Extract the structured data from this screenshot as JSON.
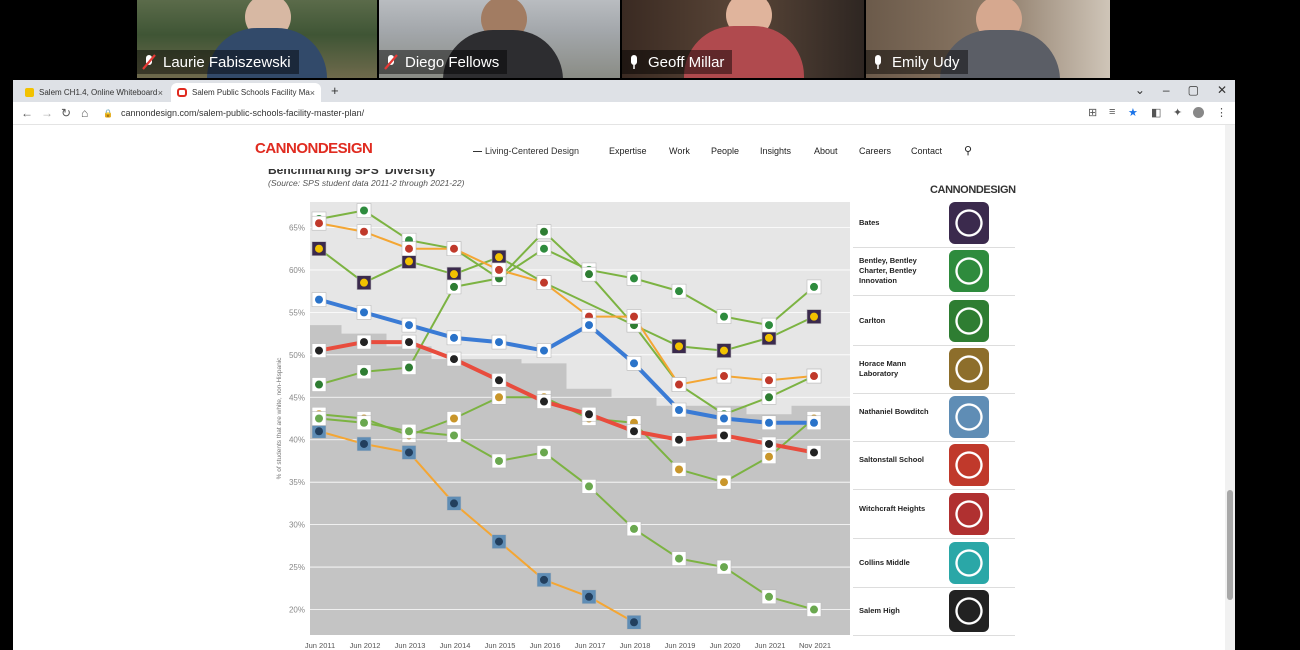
{
  "participants": [
    {
      "name": "Laurie Fabiszewski",
      "muted": true,
      "active": false
    },
    {
      "name": "Diego Fellows",
      "muted": true,
      "active": false
    },
    {
      "name": "Geoff Millar",
      "muted": false,
      "active": false
    },
    {
      "name": "Emily Udy",
      "muted": false,
      "active": true
    }
  ],
  "browser": {
    "tabs": [
      {
        "title": "Salem CH1.4, Online Whiteboard",
        "active": false
      },
      {
        "title": "Salem Public Schools Facility Ma",
        "active": true
      }
    ],
    "url": "cannondesign.com/salem-public-schools-facility-master-plan/",
    "new_tab_label": "+",
    "close_label": "×",
    "window_controls": [
      "⌄",
      "–",
      "▢",
      "✕"
    ]
  },
  "site": {
    "logo": "CANNONDESIGN",
    "tagline": "Living-Centered Design",
    "nav": [
      "Expertise",
      "Work",
      "People",
      "Insights",
      "About",
      "Careers",
      "Contact"
    ]
  },
  "chart_data": {
    "type": "line",
    "title": "Benchmarking SPS' Diversity",
    "source": "(Source: SPS student data 2011-2 through 2021-22)",
    "ylabel": "% of students that are white, non-Hispanic",
    "ylim": [
      17,
      68
    ],
    "yticks": [
      "20%",
      "25%",
      "30%",
      "35%",
      "40%",
      "45%",
      "50%",
      "55%",
      "60%",
      "65%"
    ],
    "categories": [
      "Jun 2011",
      "Jun 2012",
      "Jun 2013",
      "Jun 2014",
      "Jun 2015",
      "Jun 2016",
      "Jun 2017",
      "Jun 2018",
      "Jun 2019",
      "Jun 2020",
      "Jun 2021",
      "Nov 2021"
    ],
    "district_band": [
      53.5,
      52.5,
      51,
      49.5,
      49.5,
      49,
      46,
      45,
      44,
      44,
      43,
      44
    ],
    "series": [
      {
        "name": "Bates",
        "color": "#7cb342",
        "values": [
          62.5,
          58.5,
          61,
          59.5,
          61.5,
          58.5,
          null,
          53.5,
          51,
          50.5,
          52,
          54.5
        ]
      },
      {
        "name": "Bentley, Bentley Charter, Bentley Innovation",
        "color": "#7cb342",
        "values": [
          66,
          67,
          63.5,
          62.5,
          59,
          62.5,
          60,
          59,
          57.5,
          54.5,
          53.5,
          58
        ]
      },
      {
        "name": "Carlton",
        "color": "#7cb342",
        "values": [
          46.5,
          48,
          48.5,
          58,
          59,
          64.5,
          59.5,
          53.5,
          46.5,
          43,
          45,
          47.5
        ]
      },
      {
        "name": "Horace Mann Laboratory",
        "color": "#7cb342",
        "values": [
          43,
          42.5,
          40.5,
          42.5,
          45,
          45,
          42.5,
          42,
          36.5,
          35,
          38,
          42.5
        ]
      },
      {
        "name": "Nathaniel Bowditch",
        "color": "#f4a633",
        "values": [
          41,
          39.5,
          38.5,
          32.5,
          28,
          23.5,
          21.5,
          18.5,
          null,
          null,
          null,
          null
        ]
      },
      {
        "name": "Saltonstall School",
        "color": "#f4a633",
        "values": [
          65.5,
          64.5,
          62.5,
          62.5,
          60,
          58.5,
          54.5,
          54.5,
          46.5,
          47.5,
          47,
          47.5
        ]
      },
      {
        "name": "Witchcraft Heights",
        "color": "#7cb342",
        "values": [
          42.5,
          42,
          41,
          40.5,
          37.5,
          38.5,
          34.5,
          29.5,
          26,
          25,
          21.5,
          20
        ]
      },
      {
        "name": "Collins Middle",
        "color": "#3a7bd5",
        "values": [
          56.5,
          55,
          53.5,
          52,
          51.5,
          50.5,
          53.5,
          49,
          43.5,
          42.5,
          42,
          42
        ]
      },
      {
        "name": "Salem High",
        "color": "#e84c3d",
        "values": [
          50.5,
          51.5,
          51.5,
          49.5,
          47,
          44.5,
          43,
          41,
          40,
          40.5,
          39.5,
          38.5
        ]
      }
    ],
    "legend": [
      {
        "label": "Bates",
        "badge_color": "#3b2a4d"
      },
      {
        "label": "Bentley, Bentley Charter, Bentley Innovation",
        "badge_color": "#2e8b3d"
      },
      {
        "label": "Carlton",
        "badge_color": "#2e7d32"
      },
      {
        "label": "Horace Mann Laboratory",
        "badge_color": "#8d6e2b"
      },
      {
        "label": "Nathaniel Bowditch",
        "badge_color": "#5f8db5"
      },
      {
        "label": "Saltonstall School",
        "badge_color": "#c0392b"
      },
      {
        "label": "Witchcraft Heights",
        "badge_color": "#b03030"
      },
      {
        "label": "Collins Middle",
        "badge_color": "#2aa7a7"
      },
      {
        "label": "Salem High",
        "badge_color": "#222222"
      }
    ],
    "grid": true,
    "legend_position": "right"
  }
}
